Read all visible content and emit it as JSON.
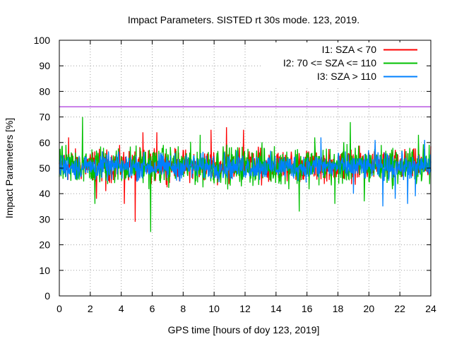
{
  "chart_data": {
    "type": "line",
    "title": "Impact Parameters. SISTED rt 30s mode. 123, 2019.",
    "xlabel": "GPS time [hours of doy 123, 2019]",
    "ylabel": "Impact Parameters [%]",
    "xlim": [
      0,
      24
    ],
    "ylim": [
      0,
      100
    ],
    "xticks": [
      0,
      2,
      4,
      6,
      8,
      10,
      12,
      14,
      16,
      18,
      20,
      22,
      24
    ],
    "yticks": [
      0,
      10,
      20,
      30,
      40,
      50,
      60,
      70,
      80,
      90,
      100
    ],
    "grid": true,
    "legend_position": "top-right",
    "threshold": {
      "value": 74,
      "color": "#9400d3"
    },
    "series": [
      {
        "name": "I1: SZA < 70",
        "color": "#ff0000",
        "mean": 50,
        "typical_min": 42,
        "typical_max": 60,
        "spikes": [
          [
            0.6,
            62
          ],
          [
            2.4,
            38
          ],
          [
            4.2,
            36
          ],
          [
            4.9,
            29
          ],
          [
            5.4,
            64
          ],
          [
            6.3,
            64
          ],
          [
            9.8,
            65
          ],
          [
            10.8,
            66
          ],
          [
            11.9,
            65
          ],
          [
            13.0,
            58
          ],
          [
            3.0,
            41
          ]
        ]
      },
      {
        "name": "I2: 70 <= SZA <= 110",
        "color": "#00c000",
        "mean": 50,
        "typical_min": 40,
        "typical_max": 62,
        "spikes": [
          [
            1.5,
            70
          ],
          [
            2.3,
            36
          ],
          [
            5.9,
            25
          ],
          [
            9.1,
            63
          ],
          [
            15.5,
            33
          ],
          [
            16.5,
            62
          ],
          [
            17.8,
            36
          ],
          [
            18.8,
            68
          ],
          [
            19.7,
            37
          ],
          [
            23.2,
            63
          ]
        ]
      },
      {
        "name": "I3: SZA > 110",
        "color": "#0080ff",
        "mean": 50,
        "typical_min": 43,
        "typical_max": 58,
        "spikes": [
          [
            20.9,
            35
          ],
          [
            21.7,
            38
          ],
          [
            22.5,
            36
          ],
          [
            23.0,
            39
          ],
          [
            19.0,
            40
          ],
          [
            16.9,
            62
          ],
          [
            20.4,
            61
          ],
          [
            23.6,
            61
          ]
        ]
      }
    ]
  }
}
